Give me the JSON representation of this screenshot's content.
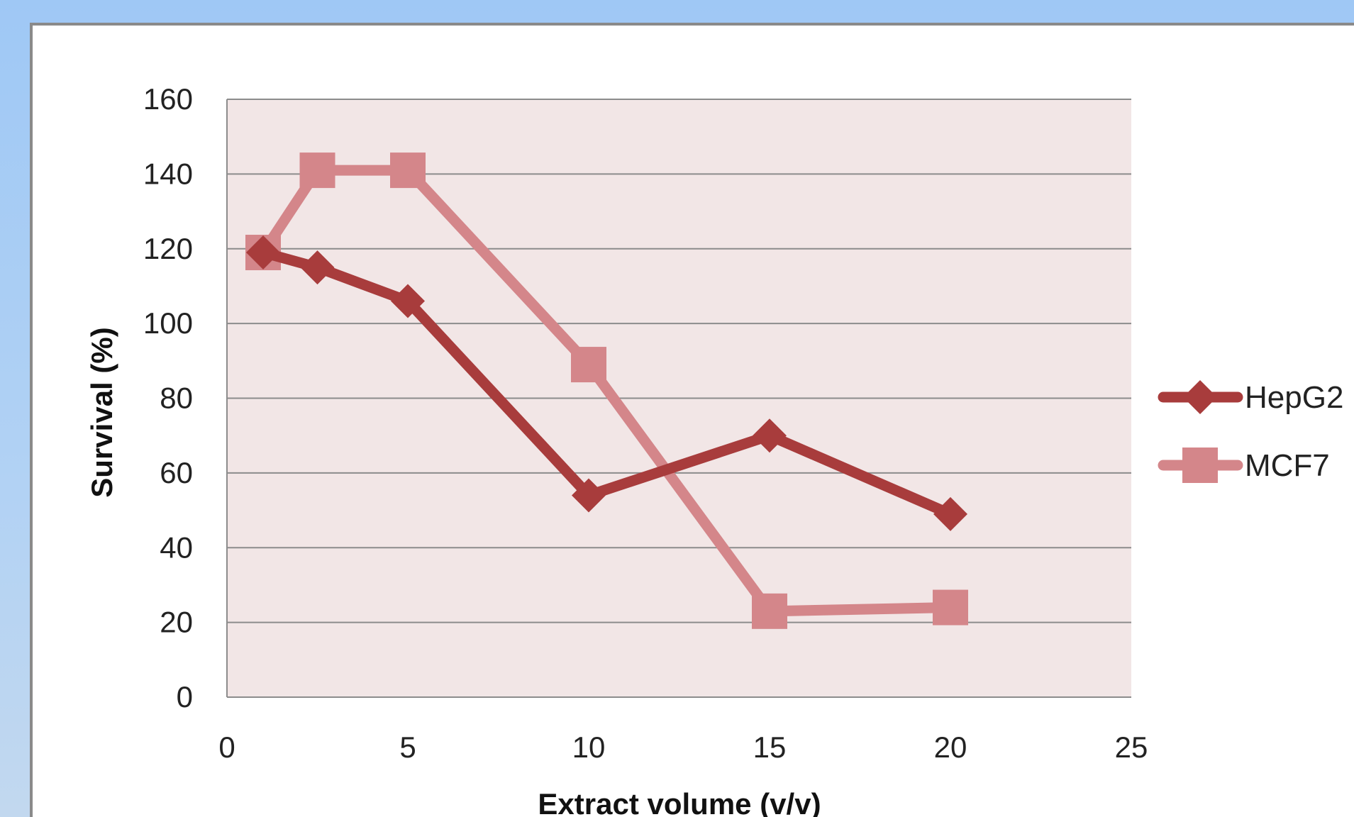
{
  "chart_data": {
    "type": "line",
    "title": "",
    "xlabel": "Extract volume (v/v)",
    "ylabel": "Survival (%)",
    "xlim": [
      0,
      25
    ],
    "ylim": [
      0,
      160
    ],
    "xticks": [
      0,
      5,
      10,
      15,
      20,
      25
    ],
    "yticks": [
      0,
      20,
      40,
      60,
      80,
      100,
      120,
      140,
      160
    ],
    "grid": "horizontal",
    "legend_position": "right",
    "plot_background": "#f2e6e6",
    "series": [
      {
        "name": "HepG2",
        "color": "#a83c3c",
        "marker": "diamond",
        "x": [
          1,
          2.5,
          5,
          10,
          15,
          20
        ],
        "y": [
          119,
          115,
          106,
          54,
          70,
          49
        ]
      },
      {
        "name": "MCF7",
        "color": "#d4868a",
        "marker": "square",
        "x": [
          1,
          2.5,
          5,
          10,
          15,
          20
        ],
        "y": [
          119,
          141,
          141,
          89,
          23,
          24
        ]
      }
    ]
  }
}
